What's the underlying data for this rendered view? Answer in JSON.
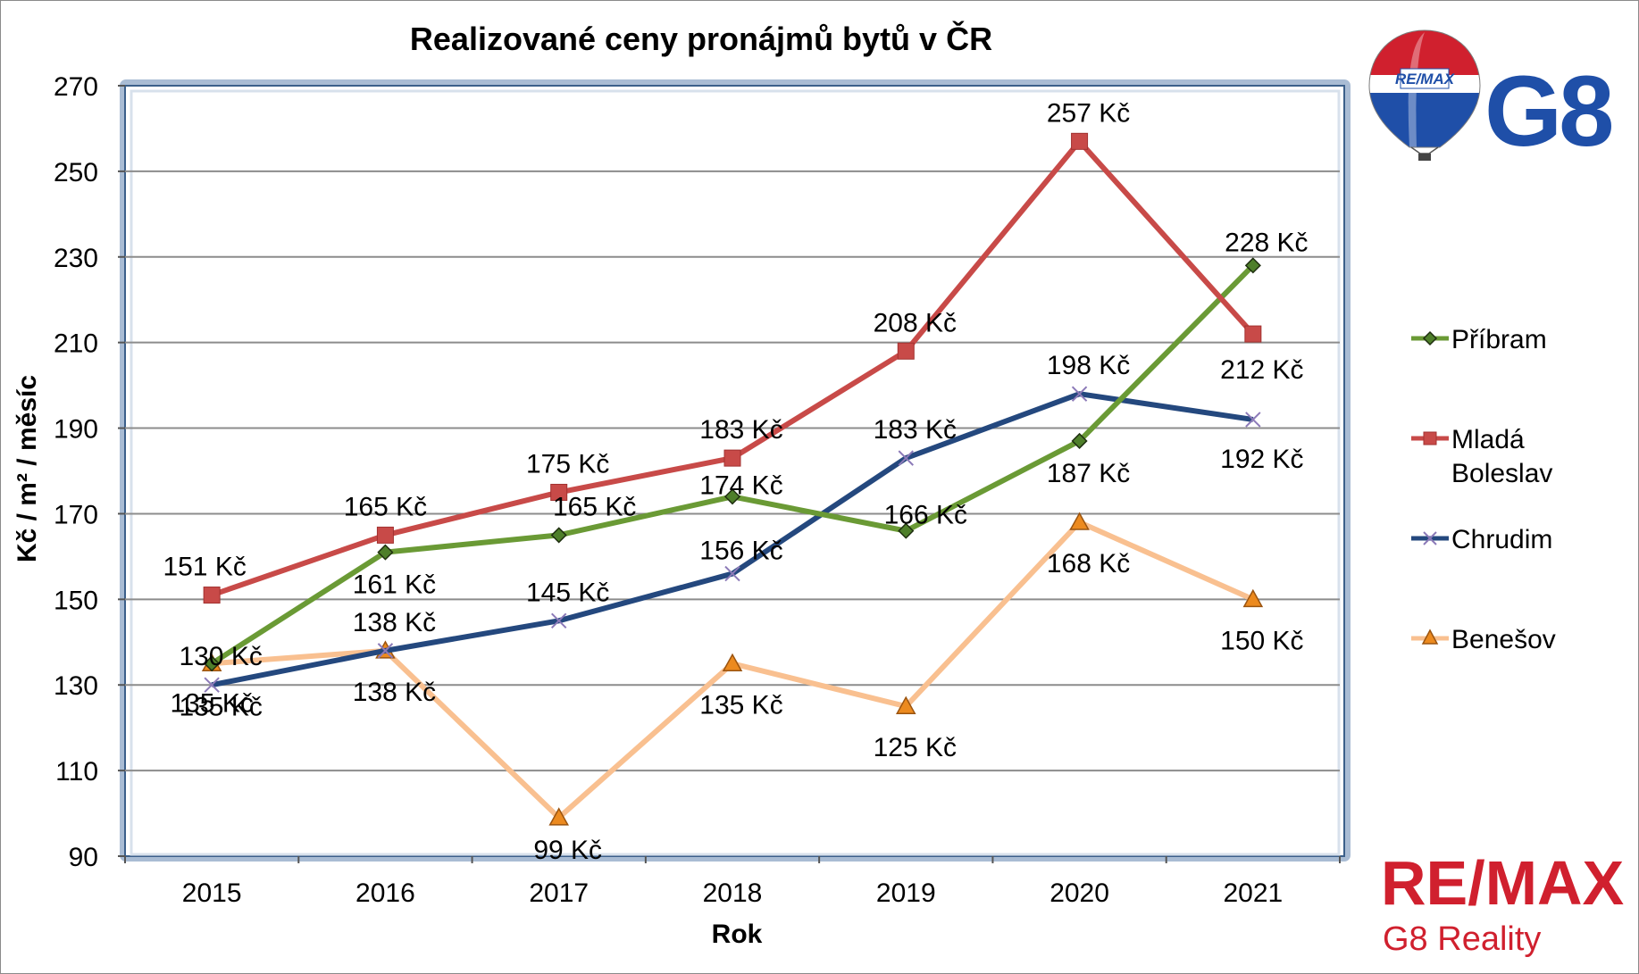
{
  "chart_data": {
    "type": "line",
    "title": "Realizované ceny pronájmů bytů v ČR",
    "xlabel": "Rok",
    "ylabel": "Kč / m² / měsíc",
    "categories": [
      "2015",
      "2016",
      "2017",
      "2018",
      "2019",
      "2020",
      "2021"
    ],
    "ylim": [
      90,
      270
    ],
    "yticks": [
      "90",
      "110",
      "130",
      "150",
      "170",
      "190",
      "210",
      "230",
      "250",
      "270"
    ],
    "grid": true,
    "legend_position": "right",
    "series": [
      {
        "name": "Příbram",
        "color": "#6a9a35",
        "marker": "diamond",
        "values": [
          135,
          161,
          165,
          174,
          166,
          187,
          228
        ],
        "labels": [
          "135 Kč",
          "161 Kč",
          "165 Kč",
          "174 Kč",
          "166 Kč",
          "187 Kč",
          "228 Kč"
        ]
      },
      {
        "name": "Mladá Boleslav",
        "color": "#c84a48",
        "marker": "square",
        "values": [
          151,
          165,
          175,
          183,
          208,
          257,
          212
        ],
        "labels": [
          "151 Kč",
          "165 Kč",
          "175 Kč",
          "183 Kč",
          "208 Kč",
          "257 Kč",
          "212 Kč"
        ]
      },
      {
        "name": "Chrudim",
        "color": "#24487e",
        "marker": "x",
        "values": [
          130,
          138,
          145,
          156,
          183,
          198,
          192
        ],
        "labels": [
          "130 Kč",
          "138 Kč",
          "145 Kč",
          "156 Kč",
          "183 Kč",
          "198 Kč",
          "192 Kč"
        ]
      },
      {
        "name": "Benešov",
        "color": "#f9c090",
        "marker": "triangle",
        "values": [
          135,
          138,
          99,
          135,
          125,
          168,
          150
        ],
        "labels": [
          "135 Kč",
          "138 Kč",
          "99 Kč",
          "135 Kč",
          "125 Kč",
          "168 Kč",
          "150 Kč"
        ]
      }
    ]
  },
  "legend": {
    "pribram": "Příbram",
    "mlada_line1": "Mladá",
    "mlada_line2": "Boleslav",
    "chrudim": "Chrudim",
    "benesov": "Benešov"
  },
  "logos": {
    "balloon_text": "RE/MAX",
    "g8_text": "G8",
    "remax_brand": "RE/MAX",
    "remax_sub": "G8 Reality",
    "brand_red": "#d0202e",
    "brand_blue": "#1f4fa8"
  }
}
